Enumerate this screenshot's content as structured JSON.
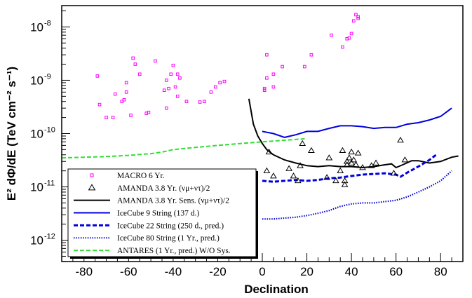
{
  "chart_data": {
    "type": "scatter",
    "xlabel": "Declination",
    "ylabel": "E² dΦ/dE (TeV cm⁻² s⁻¹)",
    "xlim": [
      -90,
      90
    ],
    "ylim_log10": [
      -12.4,
      -7.6
    ],
    "yscale": "log",
    "x_ticks": [
      -80,
      -60,
      -40,
      -20,
      0,
      20,
      40,
      60,
      80
    ],
    "x_tick_labels": [
      "-80",
      "-60",
      "-40",
      "-20",
      "0",
      "20",
      "40",
      "60",
      "80"
    ],
    "y_ticks_log10": [
      -12,
      -11,
      -10,
      -9,
      -8
    ],
    "y_tick_labels": [
      {
        "base": "10",
        "exp": "-12"
      },
      {
        "base": "10",
        "exp": "-11"
      },
      {
        "base": "10",
        "exp": "-10"
      },
      {
        "base": "10",
        "exp": "-9"
      },
      {
        "base": "10",
        "exp": "-8"
      }
    ],
    "legend_position": "bottom-left",
    "series": [
      {
        "name": "MACRO 6 Yr.",
        "kind": "markers",
        "marker": "square",
        "color": "#ff00ff",
        "points": [
          [
            -74,
            1.2e-09
          ],
          [
            -73,
            3.5e-10
          ],
          [
            -70,
            2e-10
          ],
          [
            -67,
            2e-10
          ],
          [
            -66,
            5.5e-10
          ],
          [
            -63,
            4e-10
          ],
          [
            -62,
            4.3e-10
          ],
          [
            -61,
            6e-10
          ],
          [
            -61,
            9e-10
          ],
          [
            -59,
            2.2e-10
          ],
          [
            -58,
            2.6e-09
          ],
          [
            -57,
            2e-09
          ],
          [
            -55,
            1.3e-09
          ],
          [
            -52,
            2.4e-10
          ],
          [
            -51,
            2.5e-10
          ],
          [
            -48,
            2.3e-09
          ],
          [
            -44,
            6.5e-10
          ],
          [
            -43,
            3e-10
          ],
          [
            -43,
            1e-09
          ],
          [
            -42,
            7e-10
          ],
          [
            -41,
            1.3e-09
          ],
          [
            -40,
            1.9e-09
          ],
          [
            -39,
            7.5e-10
          ],
          [
            -38,
            5e-10
          ],
          [
            -38,
            1.3e-09
          ],
          [
            -37,
            1.1e-09
          ],
          [
            -34,
            4e-10
          ],
          [
            -28,
            3.9e-10
          ],
          [
            -26,
            4e-10
          ],
          [
            -23,
            6e-10
          ],
          [
            -21,
            7.5e-10
          ],
          [
            -19,
            9e-10
          ],
          [
            -17,
            9.5e-10
          ],
          [
            1,
            6.5e-10
          ],
          [
            1,
            7e-10
          ],
          [
            2,
            3e-09
          ],
          [
            2,
            1.1e-09
          ],
          [
            5,
            1.3e-09
          ],
          [
            5,
            7.5e-10
          ],
          [
            9,
            1.8e-09
          ],
          [
            19,
            1.8e-09
          ],
          [
            22,
            3e-09
          ],
          [
            31,
            7e-09
          ],
          [
            36,
            4.2e-09
          ],
          [
            38,
            6e-09
          ],
          [
            39,
            6.2e-09
          ],
          [
            40,
            7.5e-09
          ],
          [
            41,
            1.3e-08
          ],
          [
            42,
            1.7e-08
          ],
          [
            43,
            1.45e-08
          ],
          [
            43,
            1.55e-08
          ]
        ]
      },
      {
        "name": "AMANDA 3.8 Yr. (νμ+ντ)/2",
        "kind": "markers",
        "marker": "triangle",
        "color": "#000000",
        "points": [
          [
            2,
            2e-11
          ],
          [
            3,
            4.5e-11
          ],
          [
            5,
            1.6e-11
          ],
          [
            12,
            2.2e-11
          ],
          [
            14,
            1.6e-11
          ],
          [
            16,
            1.3e-11
          ],
          [
            17,
            2.5e-11
          ],
          [
            18,
            6.5e-11
          ],
          [
            22,
            4.8e-11
          ],
          [
            29,
            1.5e-11
          ],
          [
            30,
            3.5e-11
          ],
          [
            33,
            1.3e-11
          ],
          [
            35,
            2e-11
          ],
          [
            36,
            4.8e-11
          ],
          [
            37,
            1.1e-11
          ],
          [
            37,
            1.3e-11
          ],
          [
            38,
            3e-11
          ],
          [
            38,
            2.6e-11
          ],
          [
            39,
            3.5e-11
          ],
          [
            40,
            4.5e-11
          ],
          [
            40,
            2.8e-11
          ],
          [
            41,
            3.2e-11
          ],
          [
            42,
            2.6e-11
          ],
          [
            43,
            4.3e-11
          ],
          [
            45,
            2.3e-11
          ],
          [
            49,
            2.5e-11
          ],
          [
            51,
            2.8e-11
          ],
          [
            59,
            1.8e-11
          ],
          [
            62,
            7.5e-11
          ],
          [
            64,
            3.2e-11
          ]
        ]
      },
      {
        "name": "AMANDA 3.8 Yr. Sens. (νμ+ντ)/2",
        "kind": "line",
        "dash": "solid",
        "color": "#000000",
        "points": [
          [
            -6,
            4.5e-10
          ],
          [
            -5,
            2.6e-10
          ],
          [
            -4,
            1.5e-10
          ],
          [
            -2,
            9e-11
          ],
          [
            0,
            6.5e-11
          ],
          [
            2,
            5e-11
          ],
          [
            5,
            4e-11
          ],
          [
            10,
            3.2e-11
          ],
          [
            15,
            2.8e-11
          ],
          [
            20,
            2.5e-11
          ],
          [
            25,
            2.4e-11
          ],
          [
            30,
            2.5e-11
          ],
          [
            35,
            2.4e-11
          ],
          [
            40,
            2.4e-11
          ],
          [
            45,
            2.3e-11
          ],
          [
            50,
            2.4e-11
          ],
          [
            55,
            2.6e-11
          ],
          [
            58,
            2.7e-11
          ],
          [
            60,
            2.3e-11
          ],
          [
            63,
            2.6e-11
          ],
          [
            67,
            3.1e-11
          ],
          [
            70,
            3.1e-11
          ],
          [
            75,
            2.8e-11
          ],
          [
            80,
            3e-11
          ],
          [
            85,
            3.6e-11
          ],
          [
            88,
            3.8e-11
          ]
        ]
      },
      {
        "name": "IceCube 9 String (137 d.)",
        "kind": "line",
        "dash": "solid",
        "color": "#0000dd",
        "points": [
          [
            0,
            1.1e-10
          ],
          [
            5,
            1e-10
          ],
          [
            10,
            8.5e-11
          ],
          [
            15,
            9.5e-11
          ],
          [
            20,
            1.1e-10
          ],
          [
            25,
            1.1e-10
          ],
          [
            30,
            1.25e-10
          ],
          [
            35,
            1.4e-10
          ],
          [
            40,
            1.4e-10
          ],
          [
            45,
            1.35e-10
          ],
          [
            50,
            1.25e-10
          ],
          [
            55,
            1.3e-10
          ],
          [
            60,
            1.3e-10
          ],
          [
            65,
            1.5e-10
          ],
          [
            70,
            1.6e-10
          ],
          [
            75,
            1.8e-10
          ],
          [
            80,
            2.1e-10
          ],
          [
            85,
            3e-10
          ]
        ]
      },
      {
        "name": "IceCube 22 String (250 d., pred.)",
        "kind": "line",
        "dash": "dashed",
        "color": "#0000dd",
        "points": [
          [
            0,
            1.3e-11
          ],
          [
            5,
            1.25e-11
          ],
          [
            10,
            1.3e-11
          ],
          [
            15,
            1.35e-11
          ],
          [
            20,
            1.3e-11
          ],
          [
            25,
            1.35e-11
          ],
          [
            30,
            1.45e-11
          ],
          [
            35,
            1.5e-11
          ],
          [
            40,
            1.6e-11
          ],
          [
            45,
            1.7e-11
          ],
          [
            50,
            1.75e-11
          ],
          [
            55,
            1.8e-11
          ],
          [
            60,
            1.7e-11
          ],
          [
            62,
            1.55e-11
          ],
          [
            65,
            1.85e-11
          ],
          [
            70,
            2.4e-11
          ],
          [
            75,
            3.2e-11
          ],
          [
            78,
            4e-11
          ]
        ]
      },
      {
        "name": "IceCube 80 String (1 Yr., pred.)",
        "kind": "line",
        "dash": "dotted",
        "color": "#0000dd",
        "points": [
          [
            0,
            2.5e-12
          ],
          [
            5,
            2.5e-12
          ],
          [
            10,
            2.6e-12
          ],
          [
            15,
            2.7e-12
          ],
          [
            20,
            2.9e-12
          ],
          [
            25,
            3.2e-12
          ],
          [
            30,
            3.6e-12
          ],
          [
            35,
            4.3e-12
          ],
          [
            40,
            4.8e-12
          ],
          [
            45,
            5e-12
          ],
          [
            50,
            5e-12
          ],
          [
            55,
            5.3e-12
          ],
          [
            60,
            5.6e-12
          ],
          [
            65,
            6.5e-12
          ],
          [
            70,
            8e-12
          ],
          [
            75,
            1e-11
          ],
          [
            80,
            1.3e-11
          ],
          [
            85,
            2e-11
          ]
        ]
      },
      {
        "name": "ANTARES (1 Yr., pred.) W/O Sys.",
        "kind": "line",
        "dash": "dashed",
        "color": "#33dd33",
        "points": [
          [
            -90,
            3.5e-11
          ],
          [
            -80,
            3.6e-11
          ],
          [
            -70,
            3.7e-11
          ],
          [
            -60,
            3.9e-11
          ],
          [
            -50,
            4.2e-11
          ],
          [
            -45,
            4.5e-11
          ],
          [
            -40,
            5e-11
          ],
          [
            -30,
            5.5e-11
          ],
          [
            -20,
            6e-11
          ],
          [
            -10,
            6.5e-11
          ],
          [
            0,
            7e-11
          ],
          [
            10,
            7.5e-11
          ],
          [
            19,
            8e-11
          ]
        ]
      }
    ]
  }
}
